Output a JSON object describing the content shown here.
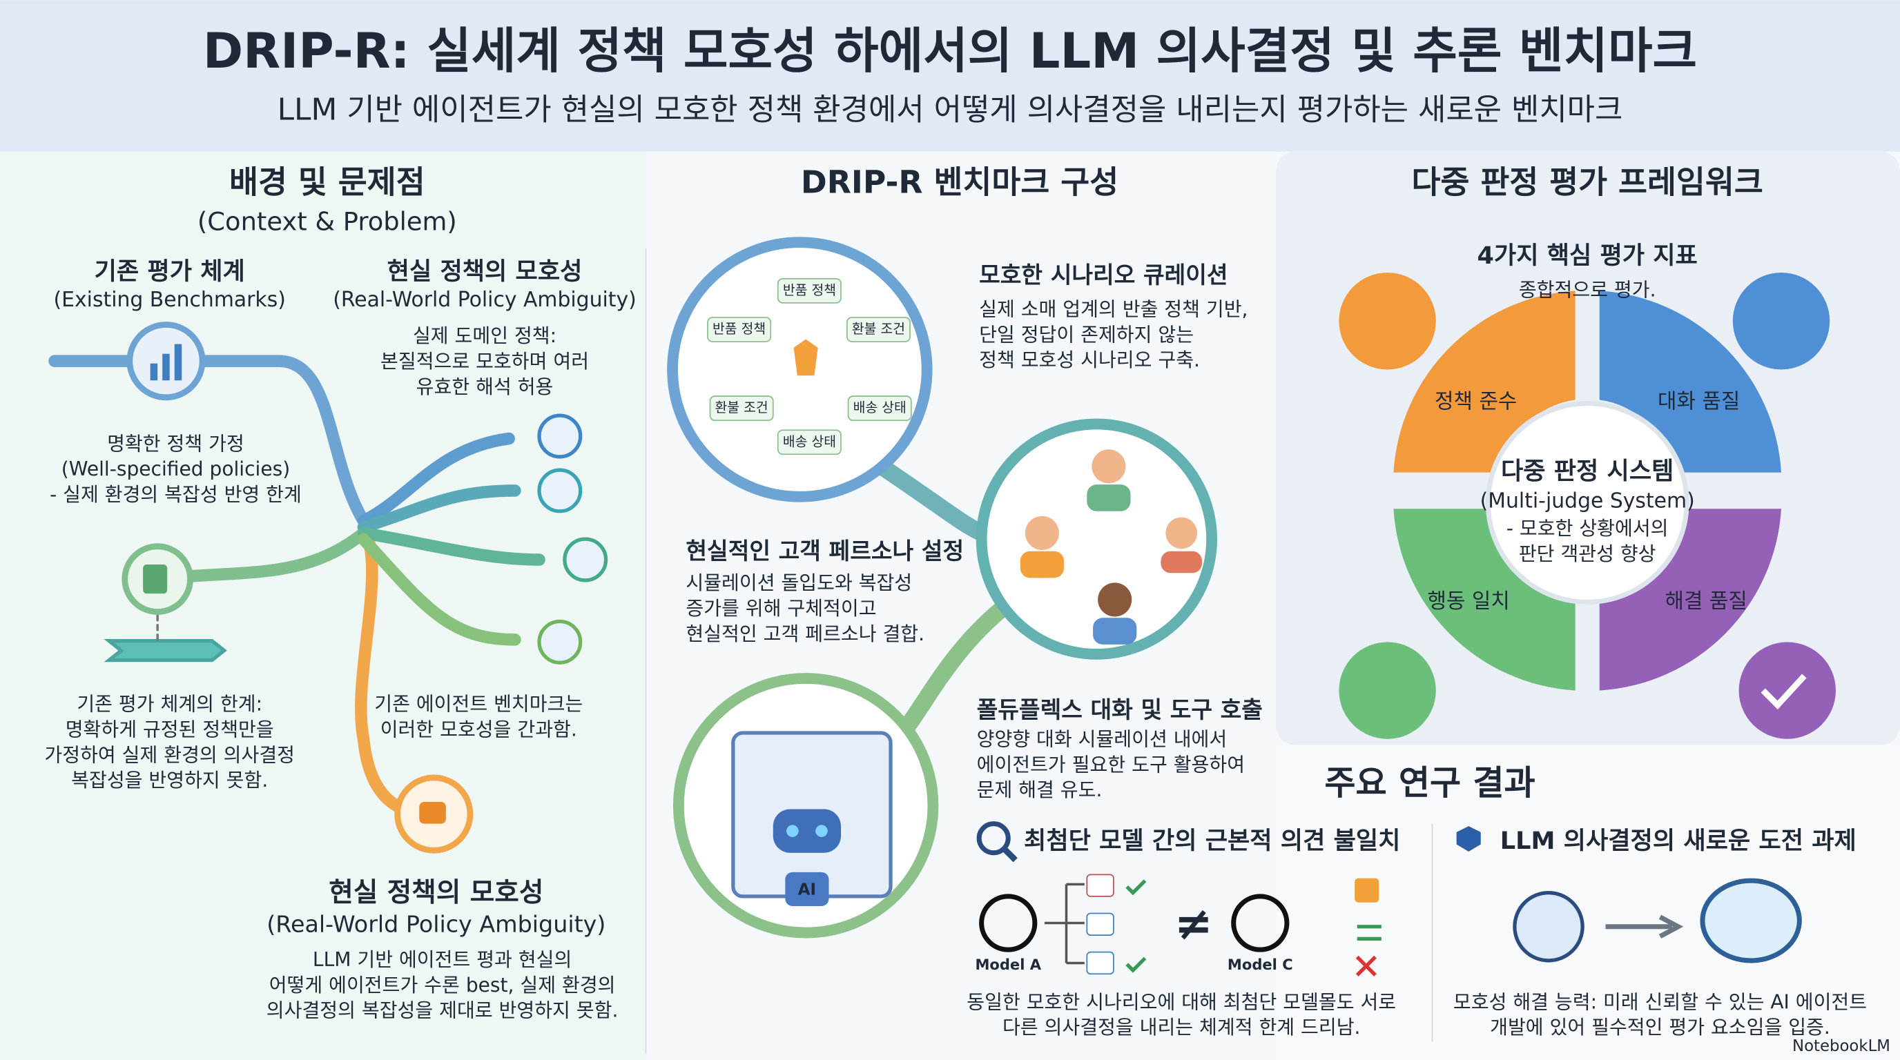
{
  "header": {
    "title": "DRIP-R: 실세계 정책 모호성 하에서의 LLM 의사결정 및 추론 벤치마크",
    "subtitle": "LLM 기반 에이전트가 현실의 모호한 정책 환경에서 어떻게 의사결정을 내리는지 평가하는 새로운 벤치마크"
  },
  "context": {
    "heading": "배경 및 문제점",
    "heading_en": "(Context & Problem)",
    "existing": {
      "title": "기존 평가 체계",
      "subtitle": "(Existing Benchmarks)"
    },
    "ambiguity_top": {
      "title": "현실 정책의 모호성",
      "subtitle": "(Real-World Policy Ambiguity)",
      "lines": [
        "실제 도메인 정책:",
        "본질적으로 모호하며 여러",
        "유효한 해석 허용"
      ]
    },
    "well_specified": [
      "명확한 정책 가정",
      "(Well-specified policies)",
      "- 실제 환경의 복잡성 반영 한계"
    ],
    "limit": [
      "기존 평가 체계의 한계:",
      "명확하게 규정된 정책만을",
      "가정하여 실제 환경의 의사결정",
      "복잡성을 반영하지 못함."
    ],
    "ignore": [
      "기존 에이전트 벤치마크는",
      "이러한 모호성을 간과함."
    ],
    "ambiguity_bottom": {
      "title": "현실 정책의 모호성",
      "subtitle": "(Real-World Policy Ambiguity)",
      "lines": [
        "LLM 기반 에이전트 평과 현실의",
        "어떻게 에이전트가 수론 best, 실제 환경의",
        "의사결정의 복잡성을 제대로 반영하지 못함."
      ]
    }
  },
  "benchmark": {
    "heading": "DRIP-R 벤치마크 구성",
    "policy_tags": [
      "반품 정책",
      "반품 정책",
      "환불 조건",
      "환불 조건",
      "배송 상태",
      "배송 상태"
    ],
    "curation": {
      "title": "모호한 시나리오 큐레이션",
      "lines": [
        "실제 소매 업계의 반출 정책 기반,",
        "단일 정답이 존제하지 않는",
        "정책 모호성 시나리오 구축."
      ]
    },
    "persona": {
      "title": "현실적인 고객 페르소나 설정",
      "lines": [
        "시뮬레이션 돌입도와 복잡성",
        "증가를 위해 구체적이고",
        "현실적인 고객 페르소나 결합."
      ]
    },
    "multiturn": {
      "title": "폴듀플렉스 대화 및 도구 호출",
      "lines": [
        "양양향 대화 시뮬레이션 내에서",
        "에이전트가 필요한 도구 활용하여",
        "문제 해결 유도."
      ]
    },
    "ai_label": "AI"
  },
  "framework": {
    "heading": "다중 판정 평가 프레임워크",
    "metrics_title": "4가지 핵심 평가 지표",
    "metrics_subtitle": "종합적으로 평가.",
    "segments": [
      "정책 준수",
      "대화 품질",
      "행동 일치",
      "해결 품질"
    ],
    "center": {
      "title": "다중 판정 시스템",
      "subtitle": "(Multi-judge System)",
      "lines": [
        "- 모호한 상황에서의",
        "판단 객관성 향상"
      ]
    }
  },
  "findings": {
    "heading": "주요 연구 결과",
    "disagreement": {
      "title": "최첨단 모델 간의 근본적 의견 불일치",
      "model_a": "Model A",
      "model_c": "Model C",
      "not_equal": "≠",
      "lines": [
        "동일한 모호한 시나리오에 대해 최첨단 모델몰도 서로",
        "다른 의사결정을 내리는 체계적 한계 드리남."
      ]
    },
    "challenge": {
      "title": "LLM 의사결정의 새로운 도전 과제",
      "lines": [
        "모호성 해결 능력: 미래 신뢰할 수 있는 AI 에이전트",
        "개발에 있어 필수적인 평가 요소임을 입증."
      ]
    }
  },
  "footer": "NotebookLM"
}
